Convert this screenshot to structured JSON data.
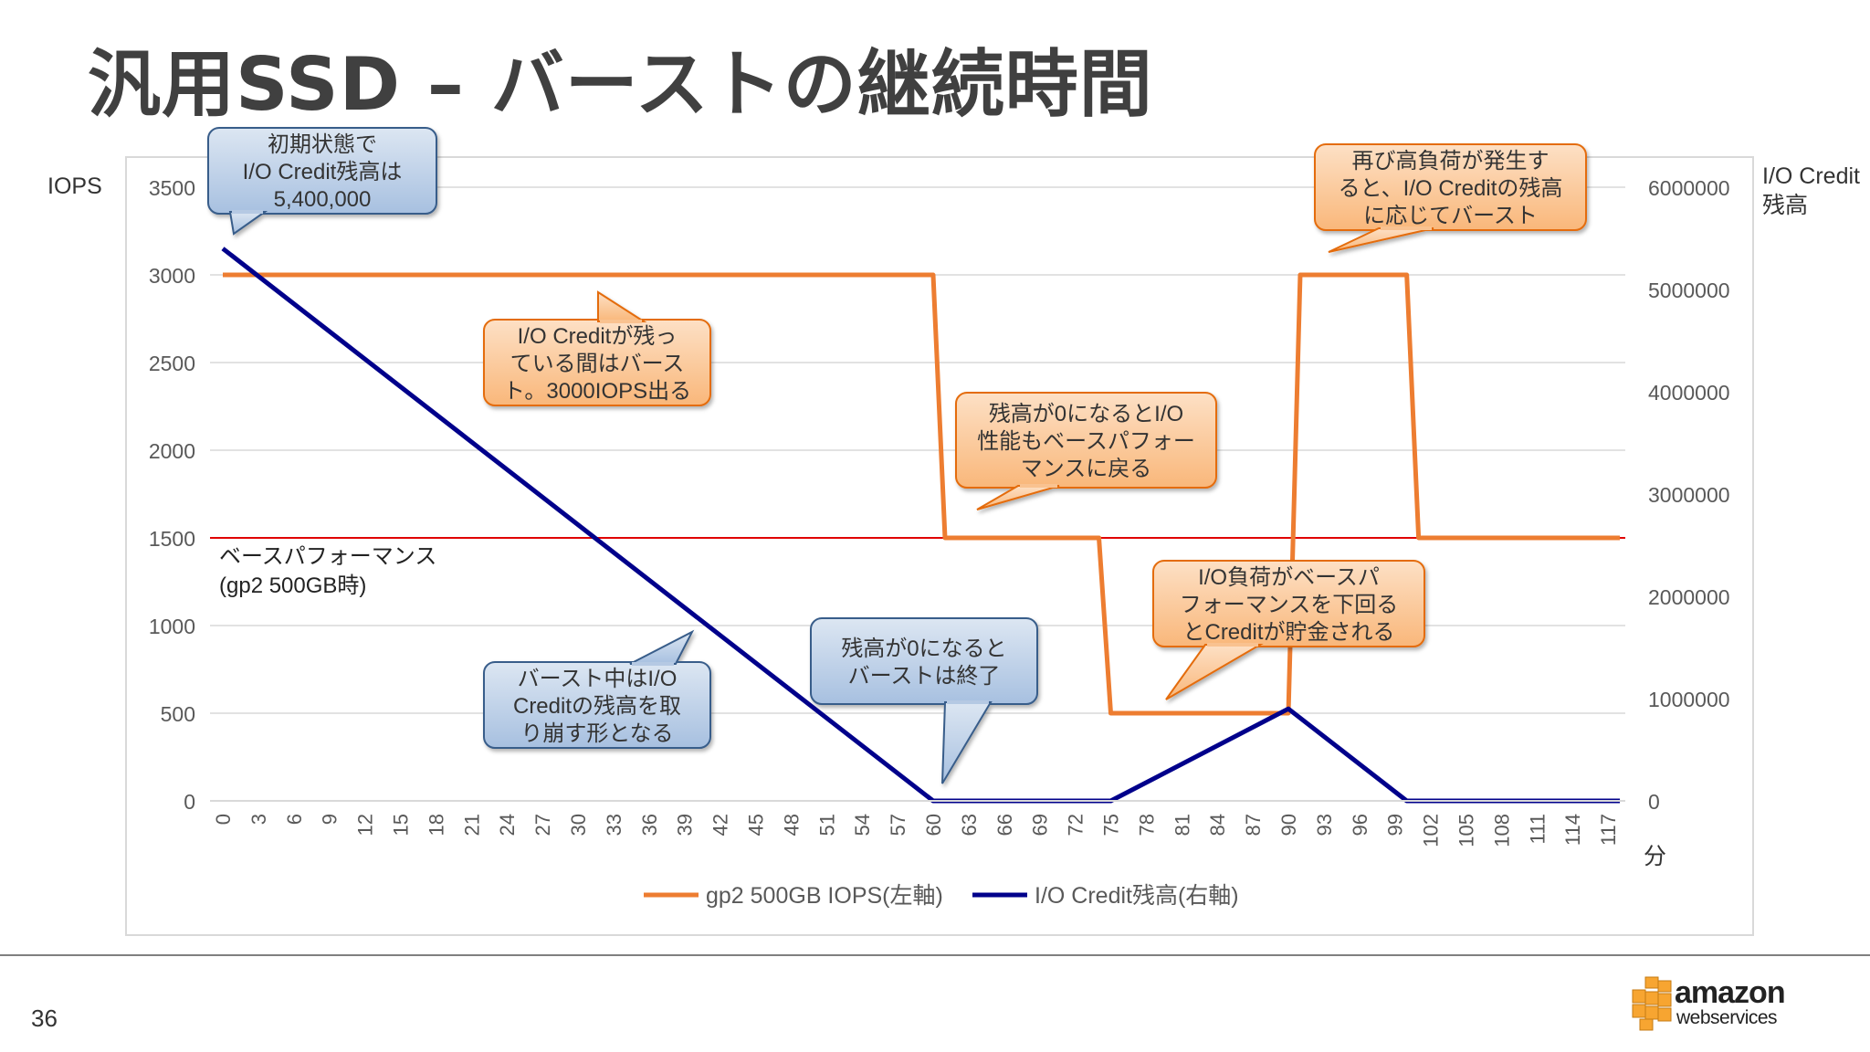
{
  "slide": {
    "title": "汎用SSD – バーストの継続時間",
    "page_number": "36",
    "logo": {
      "word": "amazon",
      "sub": "webservices"
    }
  },
  "colors": {
    "iops_line": "#ED7D31",
    "credit_line": "#00008B",
    "baseline": "#E00000",
    "orange_callout_fill": "#FAC090",
    "orange_callout_stroke": "#E46C0A",
    "blue_callout_fill": "#B9CDE5",
    "blue_callout_stroke": "#385D8A"
  },
  "chart_data": {
    "type": "line",
    "left_axis_title": "IOPS",
    "right_axis_title": [
      "I/O Credit",
      "残高"
    ],
    "x_unit_label": "分",
    "x_ticks": [
      0,
      3,
      6,
      9,
      12,
      15,
      18,
      21,
      24,
      27,
      30,
      33,
      36,
      39,
      42,
      45,
      48,
      51,
      54,
      57,
      60,
      63,
      66,
      69,
      72,
      75,
      78,
      81,
      84,
      87,
      90,
      93,
      96,
      99,
      102,
      105,
      108,
      111,
      114,
      117
    ],
    "xlim": [
      0,
      120
    ],
    "ylim_left": [
      0,
      3500
    ],
    "y_ticks_left": [
      0,
      500,
      1000,
      1500,
      2000,
      2500,
      3000,
      3500
    ],
    "ylim_right": [
      0,
      6000000
    ],
    "y_ticks_right": [
      0,
      1000000,
      2000000,
      3000000,
      4000000,
      5000000,
      6000000
    ],
    "grid": true,
    "legend_position": "bottom",
    "series": [
      {
        "name": "gp2 500GB IOPS(左軸)",
        "axis": "left",
        "x": [
          0,
          60,
          61,
          74,
          75,
          90,
          91,
          100,
          101,
          118
        ],
        "y": [
          3000,
          3000,
          1500,
          1500,
          500,
          500,
          3000,
          3000,
          1500,
          1500
        ]
      },
      {
        "name": "I/O Credit残高(右軸)",
        "axis": "right",
        "x": [
          0,
          60,
          75,
          90,
          100,
          118
        ],
        "y": [
          5400000,
          0,
          0,
          900000,
          0,
          0
        ]
      }
    ],
    "baseline": {
      "value": 1500,
      "label": [
        "ベースパフォーマンス",
        "(gp2 500GB時)"
      ]
    },
    "callouts": [
      {
        "style": "blue",
        "lines": [
          "初期状態で",
          "I/O Credit残高は",
          "5,400,000"
        ]
      },
      {
        "style": "orange",
        "lines": [
          "I/O Creditが残っ",
          "ている間はバース",
          "ト。3000IOPS出る"
        ]
      },
      {
        "style": "blue",
        "lines": [
          "バースト中はI/O",
          "Creditの残高を取",
          "り崩す形となる"
        ]
      },
      {
        "style": "blue",
        "lines": [
          "残高が0になると",
          "バーストは終了"
        ]
      },
      {
        "style": "orange",
        "lines": [
          "残高が0になるとI/O",
          "性能もベースパフォー",
          "マンスに戻る"
        ]
      },
      {
        "style": "orange",
        "lines": [
          "I/O負荷がベースパ",
          "フォーマンスを下回る",
          "とCreditが貯金される"
        ]
      },
      {
        "style": "orange",
        "lines": [
          "再び高負荷が発生す",
          "ると、I/O Creditの残高",
          "に応じてバースト"
        ]
      }
    ]
  }
}
